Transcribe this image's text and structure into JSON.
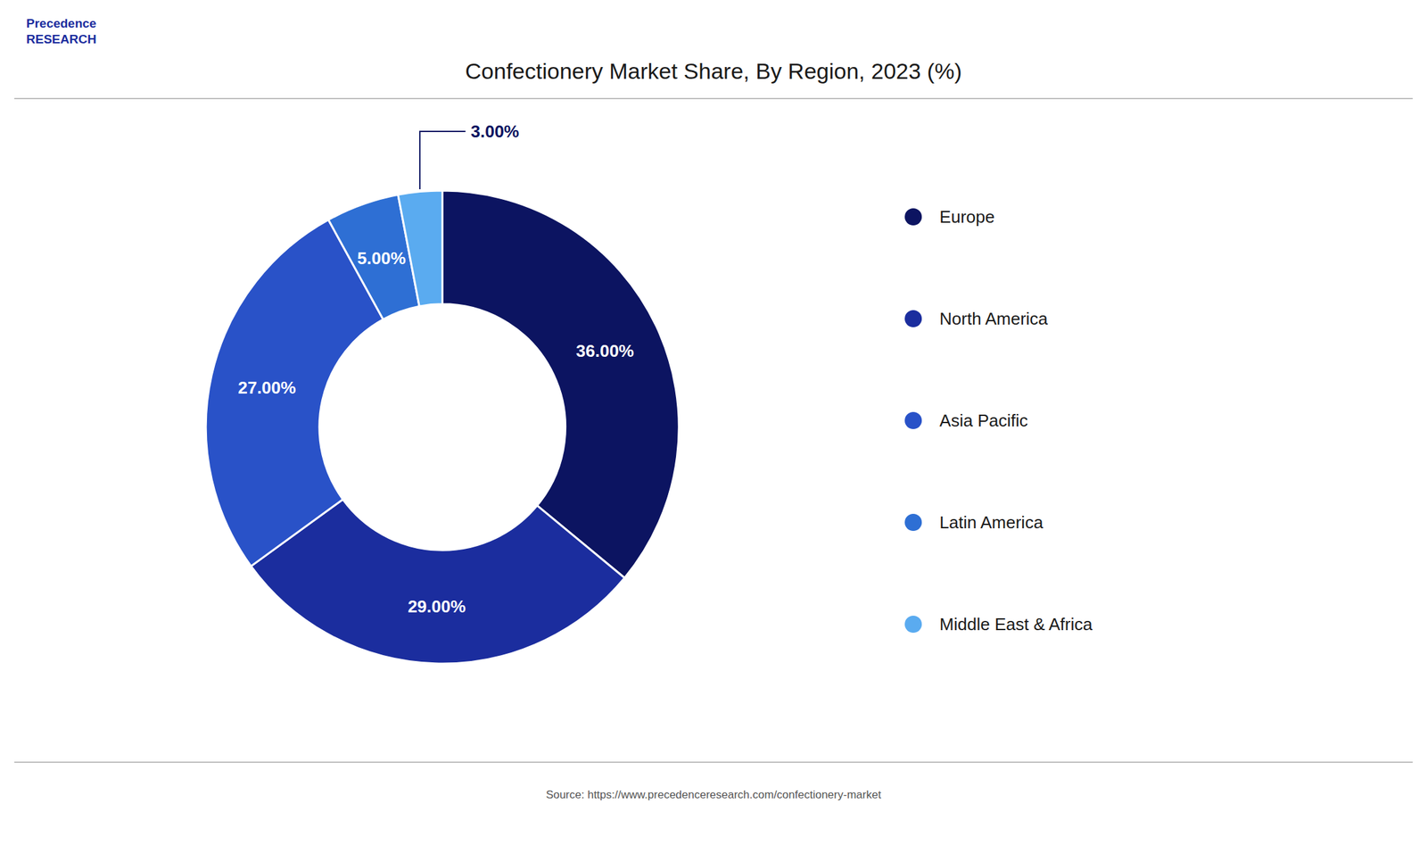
{
  "chart_data": {
    "type": "donut",
    "title": "Confectionery Market Share, By Region, 2023 (%)",
    "categories": [
      "Europe",
      "North America",
      "Asia Pacific",
      "Latin America",
      "Middle East & Africa"
    ],
    "values": [
      36.0,
      29.0,
      27.0,
      5.0,
      3.0
    ],
    "value_labels": [
      "36.00%",
      "29.00%",
      "27.00%",
      "5.00%",
      "3.00%"
    ],
    "colors": [
      "#0c1461",
      "#1b2d9e",
      "#2952c8",
      "#2e6fd4",
      "#5aabf0"
    ],
    "data_labels": true,
    "legend": "right",
    "annotations": [
      "Precedence",
      "RESEARCH",
      "Source: https://www.precedenceresearch.com/confectionery-market"
    ]
  }
}
